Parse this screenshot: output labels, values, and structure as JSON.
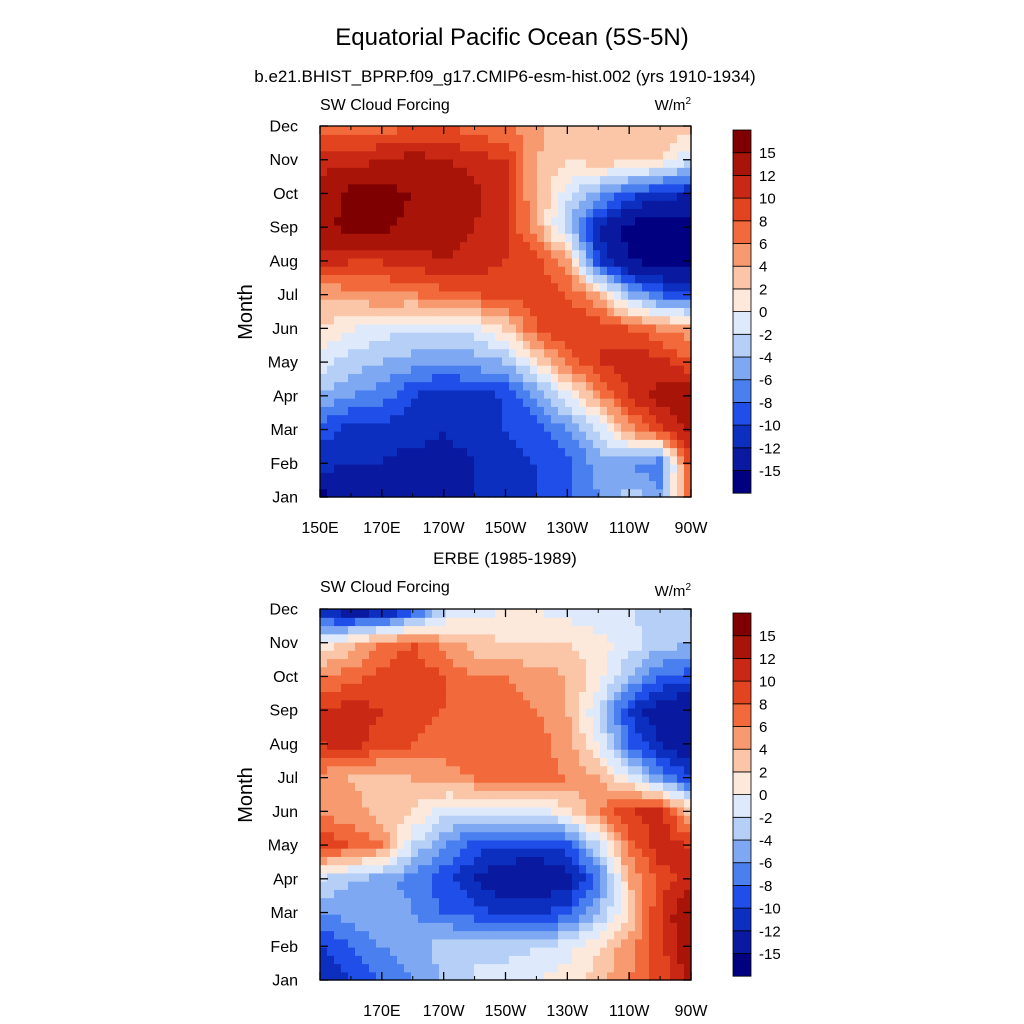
{
  "figure": {
    "title": "Equatorial Pacific Ocean (5S-5N)",
    "subtitle": "b.e21.BHIST_BPRP.f09_g17.CMIP6-esm-hist.002 (yrs 1910-1934)"
  },
  "colorbar": {
    "colors": [
      "#000080",
      "#0a1aa0",
      "#0d2fc0",
      "#1f4fe8",
      "#4a7ff0",
      "#7fa8f2",
      "#b5cff7",
      "#deeafb",
      "#fde9dc",
      "#fbc6a8",
      "#f79a6f",
      "#f26a3c",
      "#e24420",
      "#c82814",
      "#a81408",
      "#7f0000"
    ],
    "labels": [
      "-15",
      "-12",
      "-10",
      "-8",
      "-6",
      "-4",
      "-2",
      "0",
      "2",
      "4",
      "6",
      "8",
      "10",
      "12",
      "15"
    ]
  },
  "chart_data": [
    {
      "type": "heatmap",
      "panel_title": "",
      "left_label": "SW Cloud Forcing",
      "units_label": "W/m",
      "units_sup": "2",
      "ylabel": "Month",
      "x_tick_labels": [
        "150E",
        "170E",
        "170W",
        "150W",
        "130W",
        "110W",
        "90W"
      ],
      "y_tick_labels": [
        "Jan",
        "Feb",
        "Mar",
        "Apr",
        "May",
        "Jun",
        "Jul",
        "Aug",
        "Sep",
        "Oct",
        "Nov",
        "Dec"
      ],
      "xlim": [
        150,
        270
      ],
      "x_units": "degrees east longitude",
      "levels": [
        -15,
        -12,
        -10,
        -8,
        -6,
        -4,
        -2,
        0,
        2,
        4,
        6,
        8,
        10,
        12,
        15
      ],
      "x": [
        150,
        160,
        170,
        180,
        190,
        200,
        210,
        220,
        230,
        240,
        250,
        260,
        270
      ],
      "months": [
        "Jan",
        "Feb",
        "Mar",
        "Apr",
        "May",
        "Jun",
        "Jul",
        "Aug",
        "Sep",
        "Oct",
        "Nov",
        "Dec"
      ],
      "z": [
        [
          -16,
          -14,
          -13,
          -13,
          -12,
          -12,
          -11,
          -10,
          -8,
          -6,
          -3,
          -5,
          8
        ],
        [
          -11,
          -12,
          -12,
          -13,
          -13,
          -12,
          -11,
          -10,
          -9,
          -5,
          -6,
          -8,
          10
        ],
        [
          -9,
          -11,
          -11,
          -11,
          -12,
          -11,
          -10,
          -9,
          -6,
          -2,
          5,
          9,
          13
        ],
        [
          -4,
          -6,
          -7,
          -10,
          -11,
          -11,
          -10,
          -6,
          -1,
          5,
          10,
          13,
          15
        ],
        [
          -1,
          -3,
          -4,
          -5,
          -6,
          -5,
          -4,
          1,
          7,
          10,
          12,
          11,
          8
        ],
        [
          2,
          0,
          -1,
          -2,
          -2,
          -1,
          2,
          8,
          10,
          10,
          8,
          6,
          5
        ],
        [
          4,
          5,
          6,
          6,
          7,
          8,
          9,
          9,
          8,
          4,
          -4,
          -8,
          -10
        ],
        [
          11,
          10,
          10,
          11,
          12,
          11,
          10,
          9,
          5,
          -10,
          -15,
          -16,
          -16
        ],
        [
          14,
          16,
          16,
          14,
          13,
          12,
          10,
          5,
          -4,
          -12,
          -16,
          -17,
          -17
        ],
        [
          13,
          16,
          16,
          15,
          14,
          13,
          10,
          4,
          -1,
          -5,
          -9,
          -11,
          -12
        ],
        [
          11,
          11,
          12,
          13,
          12,
          11,
          10,
          4,
          2,
          3,
          3,
          2,
          -2
        ],
        [
          7,
          7,
          7,
          8,
          8,
          7,
          6,
          5,
          2,
          2,
          4,
          4,
          3
        ]
      ]
    },
    {
      "type": "heatmap",
      "panel_title": "ERBE (1985-1989)",
      "left_label": "SW Cloud Forcing",
      "units_label": "W/m",
      "units_sup": "2",
      "ylabel": "Month",
      "x_tick_labels": [
        "170E",
        "170W",
        "150W",
        "130W",
        "110W",
        "90W"
      ],
      "y_tick_labels": [
        "Jan",
        "Feb",
        "Mar",
        "Apr",
        "May",
        "Jun",
        "Jul",
        "Aug",
        "Sep",
        "Oct",
        "Nov",
        "Dec"
      ],
      "xlim": [
        150,
        270
      ],
      "x_units": "degrees east longitude",
      "levels": [
        -15,
        -12,
        -10,
        -8,
        -6,
        -4,
        -2,
        0,
        2,
        4,
        6,
        8,
        10,
        12,
        15
      ],
      "x": [
        150,
        160,
        170,
        180,
        190,
        200,
        210,
        220,
        230,
        240,
        250,
        260,
        270
      ],
      "months": [
        "Jan",
        "Feb",
        "Mar",
        "Apr",
        "May",
        "Jun",
        "Jul",
        "Aug",
        "Sep",
        "Oct",
        "Nov",
        "Dec"
      ],
      "z": [
        [
          -12,
          -10,
          -8,
          -6,
          -4,
          -2,
          -1,
          0,
          1,
          3,
          6,
          9,
          13
        ],
        [
          -10,
          -8,
          -6,
          -5,
          -3,
          -2,
          -3,
          -2,
          -1,
          2,
          5,
          9,
          14
        ],
        [
          -6,
          -5,
          -4,
          -6,
          -8,
          -9,
          -11,
          -10,
          -9,
          -4,
          2,
          10,
          15
        ],
        [
          -2,
          -4,
          -5,
          -7,
          -9,
          -12,
          -14,
          -15,
          -13,
          -8,
          4,
          9,
          11
        ],
        [
          10,
          8,
          6,
          -2,
          -6,
          -9,
          -10,
          -10,
          -9,
          -2,
          7,
          11,
          10
        ],
        [
          5,
          5,
          3,
          2,
          -1,
          -2,
          -1,
          -1,
          1,
          6,
          10,
          11,
          3
        ],
        [
          5,
          4,
          3,
          4,
          5,
          6,
          7,
          7,
          6,
          4,
          0,
          -6,
          -10
        ],
        [
          10,
          11,
          9,
          8,
          7,
          8,
          8,
          7,
          5,
          0,
          -8,
          -12,
          -14
        ],
        [
          10,
          11,
          10,
          9,
          8,
          8,
          7,
          6,
          4,
          -2,
          -10,
          -14,
          -15
        ],
        [
          6,
          7,
          9,
          10,
          8,
          6,
          6,
          5,
          4,
          1,
          -4,
          -8,
          -9
        ],
        [
          0,
          3,
          6,
          8,
          5,
          3,
          2,
          2,
          2,
          1,
          -1,
          -3,
          -4
        ],
        [
          -12,
          -15,
          -14,
          -10,
          -3,
          -1,
          0,
          0,
          -1,
          -2,
          -2,
          -3,
          -3
        ]
      ]
    }
  ]
}
